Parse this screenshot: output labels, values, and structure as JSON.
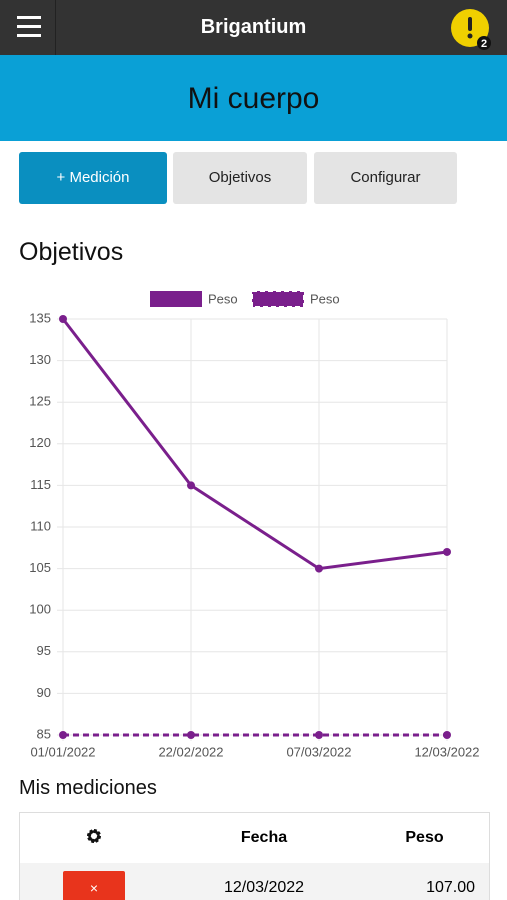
{
  "header": {
    "title": "Brigantium",
    "notification_count": "2"
  },
  "banner": {
    "title": "Mi cuerpo"
  },
  "tabs": [
    "+ Medición",
    "Objetivos",
    "Configurar"
  ],
  "sections": {
    "goals": "Objetivos",
    "measurements": "Mis mediciones"
  },
  "chart_data": {
    "type": "line",
    "categories": [
      "01/01/2022",
      "22/02/2022",
      "07/03/2022",
      "12/03/2022"
    ],
    "series": [
      {
        "name": "Peso",
        "color": "#7a1f8c",
        "dashed": false,
        "values": [
          135,
          115,
          105,
          107
        ]
      },
      {
        "name": "Peso",
        "color": "#7a1f8c",
        "dashed": true,
        "values": [
          85,
          85,
          85,
          85
        ]
      }
    ],
    "ylim": [
      85,
      135
    ],
    "yticks": [
      85,
      90,
      95,
      100,
      105,
      110,
      115,
      120,
      125,
      130,
      135
    ],
    "grid": true,
    "legend": "top"
  },
  "table": {
    "columns": [
      "Fecha",
      "Peso"
    ],
    "rows": [
      [
        "12/03/2022",
        "107.00"
      ]
    ]
  }
}
